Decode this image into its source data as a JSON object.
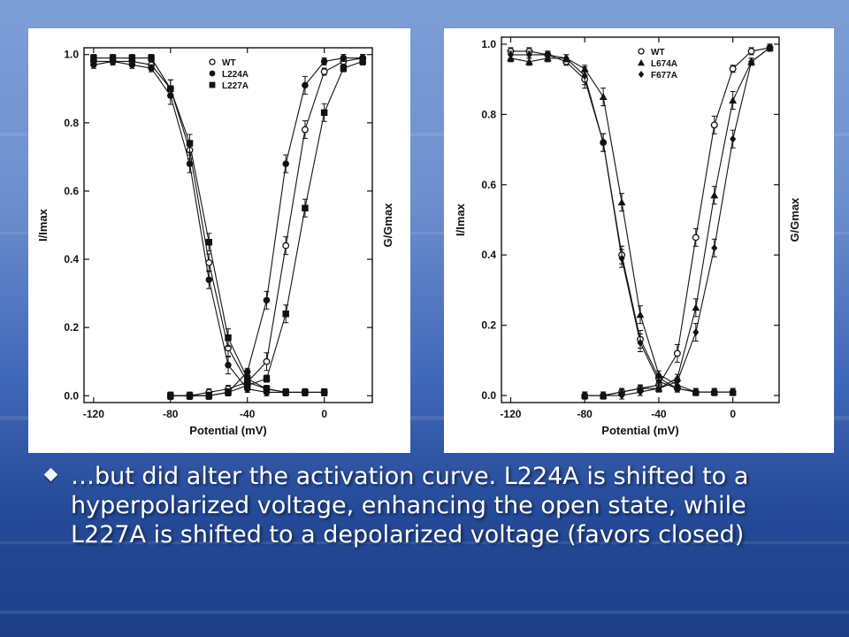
{
  "caption": "…but did alter the activation curve.  L224A is shifted to a hyperpolarized voltage, enhancing the open state, while L227A is shifted to a depolarized voltage (favors closed)",
  "colors": {
    "marks": "#111111",
    "panel": "#ffffff",
    "text": "#ffffff"
  },
  "chart_data": [
    {
      "type": "scatter",
      "xlabel": "Potential (mV)",
      "ylabel_left": "I/Imax",
      "ylabel_right": "G/Gmax",
      "xlim": [
        -125,
        25
      ],
      "ylim": [
        -0.02,
        1.02
      ],
      "xticks": [
        -120,
        -80,
        -40,
        0
      ],
      "yticks": [
        0.0,
        0.2,
        0.4,
        0.6,
        0.8,
        1.0
      ],
      "tick_labels_y": [
        "0.0",
        "0.2",
        "0.4",
        "0.6",
        "0.8",
        "1.0"
      ],
      "legend": "top-right",
      "series": [
        {
          "name": "WT",
          "marker": "circle-open",
          "inactivation": {
            "x": [
              -120,
              -110,
              -100,
              -90,
              -80,
              -70,
              -60,
              -50,
              -40,
              -30,
              -20,
              -10,
              0
            ],
            "y": [
              0.98,
              0.98,
              0.98,
              0.97,
              0.9,
              0.72,
              0.39,
              0.14,
              0.04,
              0.02,
              0.01,
              0.01,
              0.01
            ]
          },
          "activation": {
            "x": [
              -80,
              -70,
              -60,
              -50,
              -40,
              -30,
              -20,
              -10,
              0,
              10,
              20
            ],
            "y": [
              0.0,
              0.0,
              0.01,
              0.02,
              0.04,
              0.1,
              0.44,
              0.78,
              0.95,
              0.98,
              0.99
            ]
          }
        },
        {
          "name": "L224A",
          "marker": "circle-filled",
          "inactivation": {
            "x": [
              -120,
              -110,
              -100,
              -90,
              -80,
              -70,
              -60,
              -50,
              -40,
              -30,
              -20,
              -10,
              0
            ],
            "y": [
              0.97,
              0.98,
              0.97,
              0.96,
              0.88,
              0.68,
              0.34,
              0.09,
              0.02,
              0.01,
              0.01,
              0.01,
              0.01
            ]
          },
          "activation": {
            "x": [
              -80,
              -70,
              -60,
              -50,
              -40,
              -30,
              -20,
              -10,
              0,
              10,
              20
            ],
            "y": [
              0.0,
              0.0,
              0.0,
              0.01,
              0.07,
              0.28,
              0.68,
              0.91,
              0.98,
              0.99,
              0.99
            ]
          }
        },
        {
          "name": "L227A",
          "marker": "square-filled",
          "inactivation": {
            "x": [
              -120,
              -110,
              -100,
              -90,
              -80,
              -70,
              -60,
              -50,
              -40,
              -30,
              -20,
              -10,
              0
            ],
            "y": [
              0.99,
              0.99,
              0.99,
              0.99,
              0.9,
              0.74,
              0.45,
              0.17,
              0.05,
              0.02,
              0.01,
              0.01,
              0.01
            ]
          },
          "activation": {
            "x": [
              -80,
              -70,
              -60,
              -50,
              -40,
              -30,
              -20,
              -10,
              0,
              10,
              20
            ],
            "y": [
              0.0,
              0.0,
              0.0,
              0.01,
              0.03,
              0.05,
              0.24,
              0.55,
              0.83,
              0.96,
              0.98
            ]
          }
        }
      ]
    },
    {
      "type": "scatter",
      "xlabel": "Potential (mV)",
      "ylabel_left": "I/Imax",
      "ylabel_right": "G/Gmax",
      "xlim": [
        -125,
        25
      ],
      "ylim": [
        -0.02,
        1.02
      ],
      "xticks": [
        -120,
        -80,
        -40,
        0
      ],
      "yticks": [
        0.0,
        0.2,
        0.4,
        0.6,
        0.8,
        1.0
      ],
      "tick_labels_y": [
        "0.0",
        "0.2",
        "0.4",
        "0.6",
        "0.8",
        "1.0"
      ],
      "legend": "top-right",
      "series": [
        {
          "name": "WT",
          "marker": "circle-open",
          "inactivation": {
            "x": [
              -120,
              -110,
              -100,
              -90,
              -80,
              -70,
              -60,
              -50,
              -40,
              -30,
              -20,
              -10,
              0
            ],
            "y": [
              0.98,
              0.98,
              0.97,
              0.95,
              0.9,
              0.72,
              0.4,
              0.16,
              0.05,
              0.02,
              0.01,
              0.01,
              0.01
            ]
          },
          "activation": {
            "x": [
              -80,
              -70,
              -60,
              -50,
              -40,
              -30,
              -20,
              -10,
              0,
              10,
              20
            ],
            "y": [
              0.0,
              0.0,
              0.01,
              0.02,
              0.03,
              0.12,
              0.45,
              0.77,
              0.93,
              0.98,
              0.99
            ]
          }
        },
        {
          "name": "L674A",
          "marker": "triangle-filled",
          "inactivation": {
            "x": [
              -120,
              -110,
              -100,
              -90,
              -80,
              -70,
              -60,
              -50,
              -40,
              -30,
              -20,
              -10,
              0
            ],
            "y": [
              0.96,
              0.95,
              0.96,
              0.96,
              0.93,
              0.85,
              0.55,
              0.23,
              0.06,
              0.03,
              0.01,
              0.01,
              0.01
            ]
          },
          "activation": {
            "x": [
              -80,
              -70,
              -60,
              -50,
              -40,
              -30,
              -20,
              -10,
              0,
              10,
              20
            ],
            "y": [
              0.0,
              0.0,
              0.01,
              0.02,
              0.02,
              0.05,
              0.25,
              0.57,
              0.84,
              0.95,
              0.99
            ]
          }
        },
        {
          "name": "F677A",
          "marker": "diamond-filled",
          "inactivation": {
            "x": [
              -120,
              -110,
              -100,
              -90,
              -80,
              -70,
              -60,
              -50,
              -40,
              -30,
              -20,
              -10,
              0
            ],
            "y": [
              0.97,
              0.97,
              0.97,
              0.96,
              0.91,
              0.72,
              0.39,
              0.15,
              0.04,
              0.02,
              0.01,
              0.01,
              0.01
            ]
          },
          "activation": {
            "x": [
              -80,
              -70,
              -60,
              -50,
              -40,
              -30,
              -20,
              -10,
              0,
              10,
              20
            ],
            "y": [
              0.0,
              0.0,
              0.0,
              0.01,
              0.02,
              0.04,
              0.18,
              0.42,
              0.73,
              0.95,
              0.99
            ]
          }
        }
      ]
    }
  ]
}
